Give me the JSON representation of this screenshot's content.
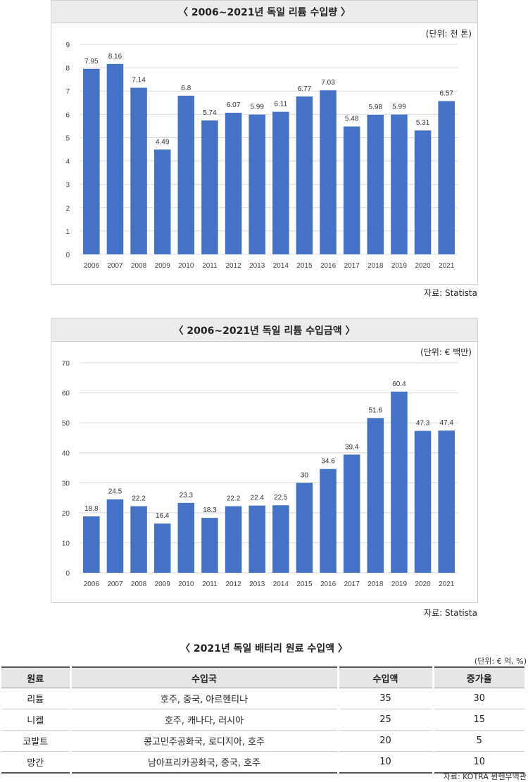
{
  "chart_data": [
    {
      "type": "bar",
      "title": "〈 2006~2021년 독일 리튬 수입량 〉",
      "unit": "(단위: 천 톤)",
      "source": "자료: Statista",
      "categories": [
        "2006",
        "2007",
        "2008",
        "2009",
        "2010",
        "2011",
        "2012",
        "2013",
        "2014",
        "2015",
        "2016",
        "2017",
        "2018",
        "2019",
        "2020",
        "2021"
      ],
      "values": [
        7.95,
        8.16,
        7.14,
        4.49,
        6.8,
        5.74,
        6.07,
        5.99,
        6.11,
        6.77,
        7.03,
        5.48,
        5.98,
        5.99,
        5.31,
        6.57
      ],
      "value_labels": [
        "7.95",
        "8.16",
        "7.14",
        "4.49",
        "6.8",
        "5.74",
        "6.07",
        "5.99",
        "6.11",
        "6.77",
        "7.03",
        "5.48",
        "5.98",
        "5.99",
        "5.31",
        "6.57"
      ],
      "ylim": [
        0,
        9
      ],
      "yticks": [
        0,
        1,
        2,
        3,
        4,
        5,
        6,
        7,
        8,
        9
      ],
      "grid": true,
      "bar_color": "#4472c4"
    },
    {
      "type": "bar",
      "title": "〈 2006~2021년 독일 리튬 수입금액 〉",
      "unit": "(단위: € 백만)",
      "source": "자료: Statista",
      "categories": [
        "2006",
        "2007",
        "2008",
        "2009",
        "2010",
        "2011",
        "2012",
        "2013",
        "2014",
        "2015",
        "2016",
        "2017",
        "2018",
        "2019",
        "2020",
        "2021"
      ],
      "values": [
        18.8,
        24.5,
        22.2,
        16.4,
        23.3,
        18.3,
        22.2,
        22.4,
        22.5,
        30,
        34.6,
        39.4,
        51.6,
        60.4,
        47.3,
        47.4
      ],
      "value_labels": [
        "18.8",
        "24.5",
        "22.2",
        "16.4",
        "23.3",
        "18.3",
        "22.2",
        "22.4",
        "22.5",
        "30",
        "34.6",
        "39.4",
        "51.6",
        "60.4",
        "47.3",
        "47.4"
      ],
      "ylim": [
        0,
        70
      ],
      "yticks": [
        0,
        10,
        20,
        30,
        40,
        50,
        60,
        70
      ],
      "grid": true,
      "bar_color": "#4472c4"
    }
  ],
  "table": {
    "title": "〈 2021년 독일 배터리 원료 수입액 〉",
    "unit": "(단위: € 억, %)",
    "headers": [
      "원료",
      "수입국",
      "수입액",
      "증가율"
    ],
    "rows": [
      [
        "리튬",
        "호주, 중국, 아르헨티나",
        "35",
        "30"
      ],
      [
        "니켈",
        "호주, 캐나다, 러시아",
        "25",
        "15"
      ],
      [
        "코발트",
        "콩고민주공화국, 로디지아, 호주",
        "20",
        "5"
      ],
      [
        "망간",
        "남아프리카공화국, 중국, 호주",
        "10",
        "10"
      ]
    ],
    "source": "자료: KOTRA 뮌헨무역관"
  }
}
